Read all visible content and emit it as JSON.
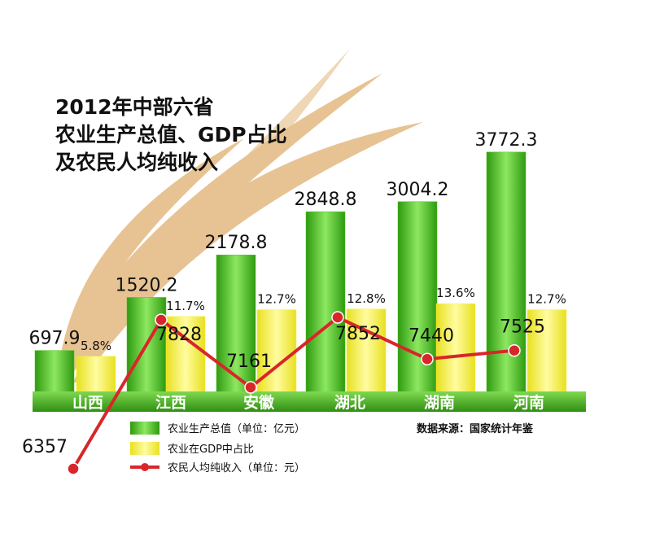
{
  "chart_data": {
    "type": "bar-line",
    "title": [
      "2012年中部六省",
      "农业生产总值、GDP占比",
      "及农民人均纯收入"
    ],
    "source": "数据来源：国家统计年鉴",
    "categories": [
      "山西",
      "江西",
      "安徽",
      "湖北",
      "湖南",
      "河南"
    ],
    "series": [
      {
        "name": "农业生产总值（单位：亿元）",
        "color": "#4cc81e",
        "type": "bar",
        "values": [
          697.9,
          1520.2,
          2178.8,
          2848.8,
          3004.2,
          3772.3
        ]
      },
      {
        "name": "农业在GDP中占比",
        "color": "#f5f03c",
        "type": "bar",
        "values": [
          5.8,
          11.7,
          12.7,
          12.8,
          13.6,
          12.7
        ],
        "value_labels": [
          "5.8%",
          "11.7%",
          "12.7%",
          "12.8%",
          "13.6%",
          "12.7%"
        ]
      },
      {
        "name": "农民人均纯收入（单位：元）",
        "color": "#d8262a",
        "type": "line",
        "values": [
          6357,
          7828,
          7161,
          7852,
          7440,
          7525
        ]
      }
    ]
  }
}
